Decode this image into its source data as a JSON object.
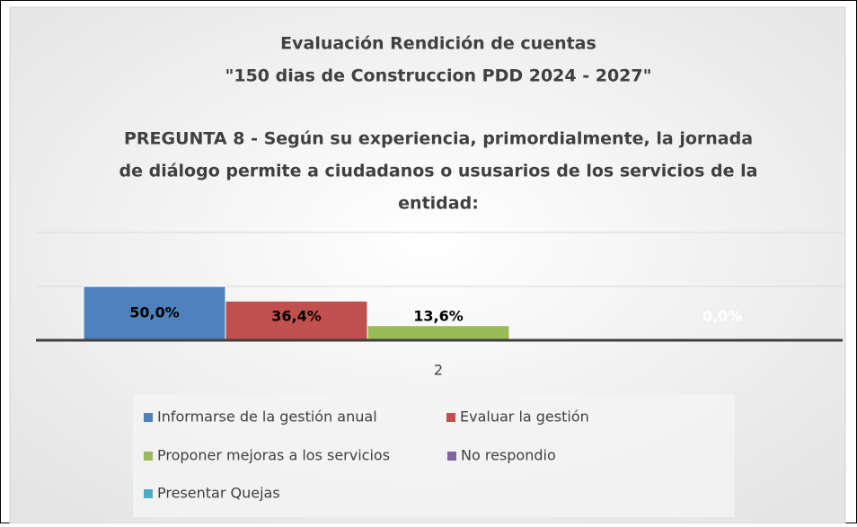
{
  "chart_data": {
    "type": "bar",
    "title": [
      "Evaluación Rendición de cuentas",
      "\"150 dias de Construccion PDD 2024 - 2027\""
    ],
    "subtitle": [
      "PREGUNTA 8 - Según su experiencia, primordialmente, la jornada",
      "de diálogo permite a ciudadanos o ususarios de los servicios de la",
      "entidad:"
    ],
    "categories": [
      "2"
    ],
    "series": [
      {
        "name": "Informarse de la gestión anual",
        "color": "#4f81bd",
        "values": [
          50.0
        ],
        "value_labels": [
          "50,0%"
        ],
        "label_color": "#000000"
      },
      {
        "name": "Evaluar la gestión",
        "color": "#c0504d",
        "values": [
          36.4
        ],
        "value_labels": [
          "36,4%"
        ],
        "label_color": "#000000"
      },
      {
        "name": "Proponer mejoras a los servicios",
        "color": "#9bbb59",
        "values": [
          13.6
        ],
        "value_labels": [
          "13,6%"
        ],
        "label_color": "#000000"
      },
      {
        "name": "No respondio",
        "color": "#8064a2",
        "values": [
          0
        ]
      },
      {
        "name": "Presentar Quejas",
        "color": "#4bacc6",
        "values": [
          0
        ],
        "value_labels": [
          "0,0%"
        ],
        "label_color": "#ffffff"
      }
    ],
    "ylim": [
      0,
      100
    ],
    "yticks": [
      0,
      50,
      100
    ],
    "grid": true
  }
}
